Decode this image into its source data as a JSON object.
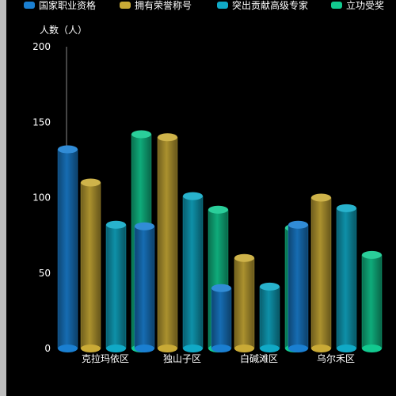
{
  "chart_data": {
    "type": "bar",
    "style": "3d-cylinder",
    "ylabel": "人数（人）",
    "ylim": [
      0,
      200
    ],
    "yticks": [
      0,
      50,
      100,
      150,
      200
    ],
    "grid": false,
    "legend_position": "top",
    "categories": [
      "克拉玛依区",
      "独山子区",
      "白碱滩区",
      "乌尔禾区"
    ],
    "series": [
      {
        "name": "国家职业资格",
        "color": "#1a7fd1",
        "values": [
          132,
          81,
          40,
          82
        ]
      },
      {
        "name": "拥有荣誉称号",
        "color": "#c9aa36",
        "values": [
          110,
          140,
          60,
          100
        ]
      },
      {
        "name": "突出贡献高级专家",
        "color": "#10a9c6",
        "values": [
          82,
          101,
          41,
          93
        ]
      },
      {
        "name": "立功受奖",
        "color": "#12c98f",
        "values": [
          142,
          92,
          80,
          62
        ]
      }
    ]
  }
}
